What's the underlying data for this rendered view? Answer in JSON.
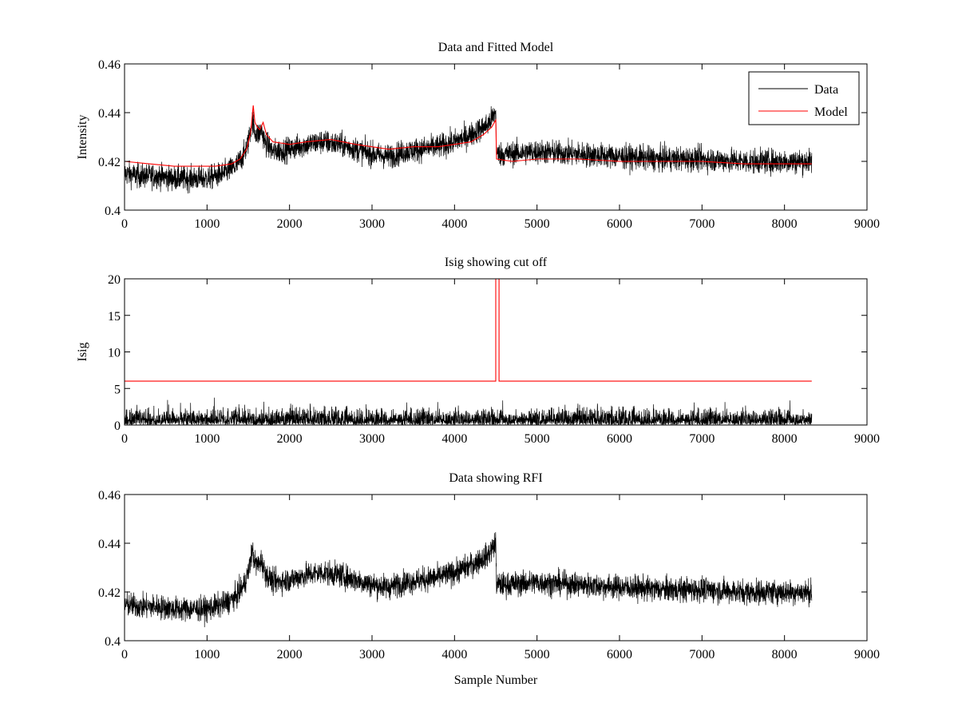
{
  "chart_data": [
    {
      "type": "line",
      "title": "Data and Fitted Model",
      "xlabel": "",
      "ylabel": "Intensity",
      "xlim": [
        0,
        9000
      ],
      "ylim": [
        0.4,
        0.46
      ],
      "xticks": [
        0,
        1000,
        2000,
        3000,
        4000,
        5000,
        6000,
        7000,
        8000,
        9000
      ],
      "xtick_labels": [
        "0",
        "1000",
        "2000",
        "3000",
        "4000",
        "5000",
        "6000",
        "7000",
        "8000",
        "9000"
      ],
      "yticks": [
        0.4,
        0.42,
        0.44,
        0.46
      ],
      "ytick_labels": [
        "0.4",
        "0.42",
        "0.44",
        "0.46"
      ],
      "grid": false,
      "legend": {
        "placement": "top-right",
        "entries": [
          "Data",
          "Model"
        ]
      },
      "series": [
        {
          "name": "Data",
          "color": "#000000",
          "noise": 0.0045,
          "x": [
            0,
            200,
            400,
            600,
            800,
            1000,
            1200,
            1350,
            1450,
            1500,
            1550,
            1580,
            1620,
            1660,
            1700,
            1800,
            2000,
            2200,
            2400,
            2600,
            2800,
            3000,
            3200,
            3400,
            3600,
            3800,
            4000,
            4200,
            4400,
            4500,
            4510,
            4600,
            5000,
            5500,
            6000,
            6500,
            7000,
            7500,
            8000,
            8330
          ],
          "y": [
            0.415,
            0.414,
            0.414,
            0.413,
            0.413,
            0.413,
            0.415,
            0.418,
            0.423,
            0.428,
            0.437,
            0.432,
            0.431,
            0.433,
            0.428,
            0.424,
            0.425,
            0.427,
            0.428,
            0.427,
            0.425,
            0.423,
            0.422,
            0.424,
            0.425,
            0.426,
            0.428,
            0.431,
            0.435,
            0.44,
            0.423,
            0.423,
            0.424,
            0.423,
            0.422,
            0.421,
            0.421,
            0.42,
            0.42,
            0.42
          ]
        },
        {
          "name": "Model",
          "color": "#ff0000",
          "noise": 0,
          "x": [
            0,
            300,
            600,
            900,
            1100,
            1300,
            1400,
            1480,
            1530,
            1560,
            1580,
            1610,
            1640,
            1680,
            1720,
            1800,
            2000,
            2200,
            2500,
            2800,
            3000,
            3200,
            3500,
            3800,
            4000,
            4200,
            4350,
            4450,
            4500,
            4510,
            4700,
            5000,
            5500,
            6000,
            6500,
            7000,
            7500,
            8000,
            8330
          ],
          "y": [
            0.42,
            0.419,
            0.418,
            0.418,
            0.418,
            0.419,
            0.421,
            0.425,
            0.432,
            0.443,
            0.436,
            0.434,
            0.433,
            0.436,
            0.431,
            0.428,
            0.427,
            0.428,
            0.429,
            0.427,
            0.426,
            0.425,
            0.426,
            0.426,
            0.427,
            0.428,
            0.431,
            0.434,
            0.437,
            0.421,
            0.42,
            0.421,
            0.421,
            0.42,
            0.42,
            0.42,
            0.419,
            0.419,
            0.419
          ]
        }
      ]
    },
    {
      "type": "line",
      "title": "Isig showing cut off",
      "xlabel": "",
      "ylabel": "Isig",
      "xlim": [
        0,
        9000
      ],
      "ylim": [
        0,
        20
      ],
      "xticks": [
        0,
        1000,
        2000,
        3000,
        4000,
        5000,
        6000,
        7000,
        8000,
        9000
      ],
      "xtick_labels": [
        "0",
        "1000",
        "2000",
        "3000",
        "4000",
        "5000",
        "6000",
        "7000",
        "8000",
        "9000"
      ],
      "yticks": [
        0,
        5,
        10,
        15,
        20
      ],
      "ytick_labels": [
        "0",
        "5",
        "10",
        "15",
        "20"
      ],
      "grid": false,
      "series": [
        {
          "color": "#000000",
          "noise": 1.1,
          "x": [
            0,
            1000,
            2000,
            3000,
            4000,
            5000,
            6000,
            7000,
            8000,
            8330
          ],
          "y": [
            1.0,
            1.0,
            0.8,
            0.8,
            0.8,
            0.9,
            0.9,
            0.8,
            0.8,
            0.8
          ]
        },
        {
          "color": "#ff0000",
          "noise": 0,
          "x": [
            0,
            4490,
            4500,
            4500,
            4540,
            4540,
            4550,
            8330
          ],
          "y": [
            6,
            6,
            6,
            20,
            20,
            6,
            6,
            6
          ]
        }
      ]
    },
    {
      "type": "line",
      "title": "Data showing RFI",
      "xlabel": "Sample Number",
      "ylabel": "",
      "xlim": [
        0,
        9000
      ],
      "ylim": [
        0.4,
        0.46
      ],
      "xticks": [
        0,
        1000,
        2000,
        3000,
        4000,
        5000,
        6000,
        7000,
        8000,
        9000
      ],
      "xtick_labels": [
        "0",
        "1000",
        "2000",
        "3000",
        "4000",
        "5000",
        "6000",
        "7000",
        "8000",
        "9000"
      ],
      "yticks": [
        0.4,
        0.42,
        0.44,
        0.46
      ],
      "ytick_labels": [
        "0.4",
        "0.42",
        "0.44",
        "0.46"
      ],
      "grid": false,
      "series": [
        {
          "color": "#000000",
          "noise": 0.0045,
          "x": [
            0,
            200,
            400,
            600,
            800,
            1000,
            1200,
            1350,
            1450,
            1500,
            1550,
            1580,
            1620,
            1660,
            1700,
            1800,
            2000,
            2200,
            2400,
            2600,
            2800,
            3000,
            3200,
            3400,
            3600,
            3800,
            4000,
            4200,
            4400,
            4500,
            4510,
            4600,
            5000,
            5500,
            6000,
            6500,
            7000,
            7500,
            8000,
            8330
          ],
          "y": [
            0.415,
            0.414,
            0.414,
            0.413,
            0.413,
            0.413,
            0.415,
            0.418,
            0.423,
            0.428,
            0.437,
            0.432,
            0.431,
            0.433,
            0.428,
            0.424,
            0.425,
            0.427,
            0.428,
            0.427,
            0.425,
            0.423,
            0.422,
            0.424,
            0.425,
            0.426,
            0.428,
            0.431,
            0.435,
            0.44,
            0.423,
            0.423,
            0.424,
            0.423,
            0.422,
            0.421,
            0.421,
            0.42,
            0.42,
            0.42
          ]
        }
      ]
    }
  ]
}
